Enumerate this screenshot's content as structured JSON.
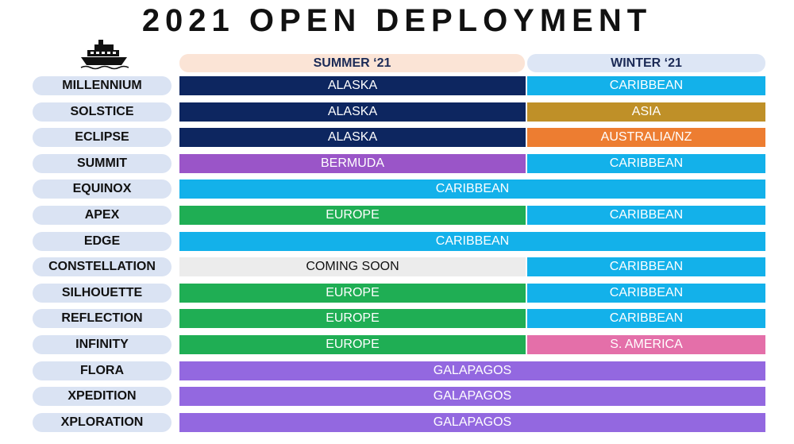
{
  "title": "2021 OPEN DEPLOYMENT",
  "icon": "cruise-ship-icon",
  "seasons": {
    "summer": "SUMMER ‘21",
    "winter": "WINTER ‘21"
  },
  "colors": {
    "ALASKA": "#0d2660",
    "CARIBBEAN": "#13b1ea",
    "ASIA": "#bf9028",
    "AUSTRALIA/NZ": "#ed7d31",
    "BERMUDA": "#9a55c8",
    "EUROPE": "#1fae54",
    "COMING SOON": "#ececec",
    "S. AMERICA": "#e46fa9",
    "GALAPAGOS": "#9368e0"
  },
  "ships": [
    {
      "name": "MILLENNIUM",
      "summer": "ALASKA",
      "winter": "CARIBBEAN"
    },
    {
      "name": "SOLSTICE",
      "summer": "ALASKA",
      "winter": "ASIA"
    },
    {
      "name": "ECLIPSE",
      "summer": "ALASKA",
      "winter": "AUSTRALIA/NZ"
    },
    {
      "name": "SUMMIT",
      "summer": "BERMUDA",
      "winter": "CARIBBEAN"
    },
    {
      "name": "EQUINOX",
      "full": "CARIBBEAN"
    },
    {
      "name": "APEX",
      "summer": "EUROPE",
      "winter": "CARIBBEAN"
    },
    {
      "name": "EDGE",
      "full": "CARIBBEAN"
    },
    {
      "name": "CONSTELLATION",
      "summer": "COMING SOON",
      "winter": "CARIBBEAN"
    },
    {
      "name": "SILHOUETTE",
      "summer": "EUROPE",
      "winter": "CARIBBEAN"
    },
    {
      "name": "REFLECTION",
      "summer": "EUROPE",
      "winter": "CARIBBEAN"
    },
    {
      "name": "INFINITY",
      "summer": "EUROPE",
      "winter": "S. AMERICA"
    },
    {
      "name": "FLORA",
      "full": "GALAPAGOS"
    },
    {
      "name": "XPEDITION",
      "full": "GALAPAGOS"
    },
    {
      "name": "XPLORATION",
      "full": "GALAPAGOS"
    }
  ]
}
